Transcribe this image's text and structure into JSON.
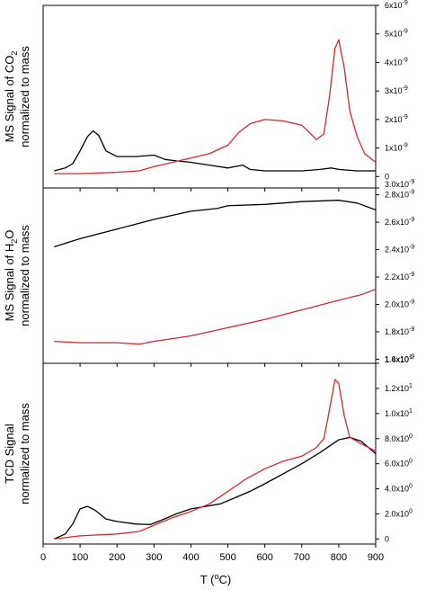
{
  "chart_data": [
    {
      "type": "line",
      "ylabel_line1_prefix": "MS Signal of CO",
      "ylabel_line1_sub": "2",
      "ylabel_line2": "normalized to mass",
      "xlim": [
        0,
        900
      ],
      "ylim": [
        -4e-10,
        6e-09
      ],
      "y_ticks": [
        0,
        1e-09,
        2e-09,
        3e-09,
        4e-09,
        5e-09,
        6e-09
      ],
      "y_tick_labels": [
        "0",
        "1x10-9",
        "2x10-9",
        "3x10-9",
        "4x10-9",
        "5x10-9",
        "6x10-9"
      ],
      "y_axis_side": "right",
      "series": [
        {
          "color": "#000000",
          "points": [
            [
              30,
              2e-10
            ],
            [
              60,
              3e-10
            ],
            [
              80,
              4.5e-10
            ],
            [
              100,
              9e-10
            ],
            [
              120,
              1.4e-09
            ],
            [
              135,
              1.6e-09
            ],
            [
              150,
              1.45e-09
            ],
            [
              170,
              9e-10
            ],
            [
              200,
              7e-10
            ],
            [
              250,
              7e-10
            ],
            [
              300,
              7.5e-10
            ],
            [
              330,
              6e-10
            ],
            [
              360,
              5.5e-10
            ],
            [
              400,
              5e-10
            ],
            [
              450,
              4e-10
            ],
            [
              500,
              3e-10
            ],
            [
              540,
              4e-10
            ],
            [
              560,
              2.5e-10
            ],
            [
              600,
              2e-10
            ],
            [
              650,
              2e-10
            ],
            [
              700,
              2e-10
            ],
            [
              750,
              2.5e-10
            ],
            [
              780,
              3e-10
            ],
            [
              800,
              2.5e-10
            ],
            [
              850,
              2e-10
            ],
            [
              900,
              2e-10
            ]
          ]
        },
        {
          "color": "#d62728",
          "points": [
            [
              30,
              1e-10
            ],
            [
              100,
              1e-10
            ],
            [
              200,
              1.5e-10
            ],
            [
              260,
              2e-10
            ],
            [
              300,
              3.5e-10
            ],
            [
              350,
              5e-10
            ],
            [
              400,
              6.5e-10
            ],
            [
              450,
              8e-10
            ],
            [
              500,
              1.1e-09
            ],
            [
              530,
              1.55e-09
            ],
            [
              560,
              1.85e-09
            ],
            [
              600,
              2e-09
            ],
            [
              650,
              1.95e-09
            ],
            [
              700,
              1.8e-09
            ],
            [
              740,
              1.3e-09
            ],
            [
              760,
              1.5e-09
            ],
            [
              775,
              2.8e-09
            ],
            [
              790,
              4.5e-09
            ],
            [
              800,
              4.8e-09
            ],
            [
              815,
              3.8e-09
            ],
            [
              830,
              2.3e-09
            ],
            [
              850,
              1.4e-09
            ],
            [
              870,
              8e-10
            ],
            [
              900,
              5e-10
            ]
          ]
        }
      ]
    },
    {
      "type": "line",
      "ylabel_line1_prefix": "MS Signal of H",
      "ylabel_line1_sub": "2",
      "ylabel_line1_suffix": "O",
      "ylabel_line2": "normalized to mass",
      "xlim": [
        0,
        900
      ],
      "ylim": [
        1.57e-09,
        2.85e-09
      ],
      "y_ticks": [
        1.6e-09,
        1.8e-09,
        2e-09,
        2.2e-09,
        2.4e-09,
        2.6e-09,
        2.8e-09,
        3e-09
      ],
      "y_tick_labels": [
        "1.6x10-9",
        "1.8x10-9",
        "2.0x10-9",
        "2.2x10-9",
        "2.4x10-9",
        "2.6x10-9",
        "2.8x10-9",
        "3.0x10-9"
      ],
      "y_axis_side": "right",
      "series": [
        {
          "color": "#000000",
          "points": [
            [
              30,
              2.42e-09
            ],
            [
              100,
              2.48e-09
            ],
            [
              200,
              2.55e-09
            ],
            [
              300,
              2.62e-09
            ],
            [
              400,
              2.68e-09
            ],
            [
              470,
              2.7e-09
            ],
            [
              500,
              2.72e-09
            ],
            [
              600,
              2.73e-09
            ],
            [
              700,
              2.75e-09
            ],
            [
              800,
              2.76e-09
            ],
            [
              850,
              2.74e-09
            ],
            [
              900,
              2.69e-09
            ]
          ]
        },
        {
          "color": "#d62728",
          "points": [
            [
              30,
              1.73e-09
            ],
            [
              100,
              1.72e-09
            ],
            [
              200,
              1.72e-09
            ],
            [
              260,
              1.71e-09
            ],
            [
              300,
              1.73e-09
            ],
            [
              400,
              1.77e-09
            ],
            [
              500,
              1.83e-09
            ],
            [
              600,
              1.89e-09
            ],
            [
              700,
              1.96e-09
            ],
            [
              800,
              2.03e-09
            ],
            [
              860,
              2.07e-09
            ],
            [
              900,
              2.11e-09
            ]
          ]
        }
      ]
    },
    {
      "type": "line",
      "ylabel_line1_prefix": "TCD Signal",
      "ylabel_line2": "normalized to mass",
      "xlim": [
        0,
        900
      ],
      "ylim": [
        -0.4,
        14.0
      ],
      "y_ticks": [
        0,
        2,
        4,
        6,
        8,
        10,
        12,
        14
      ],
      "y_tick_labels": [
        "0",
        "2.0x100",
        "4.0x100",
        "6.0x100",
        "8.0x100",
        "1.0x101",
        "1.2x101",
        "1.4x101"
      ],
      "y_axis_side": "right",
      "series": [
        {
          "color": "#000000",
          "points": [
            [
              30,
              0.0
            ],
            [
              60,
              0.4
            ],
            [
              80,
              1.2
            ],
            [
              100,
              2.4
            ],
            [
              120,
              2.6
            ],
            [
              140,
              2.3
            ],
            [
              170,
              1.6
            ],
            [
              200,
              1.4
            ],
            [
              250,
              1.2
            ],
            [
              290,
              1.15
            ],
            [
              320,
              1.5
            ],
            [
              360,
              2.0
            ],
            [
              400,
              2.4
            ],
            [
              440,
              2.6
            ],
            [
              480,
              2.8
            ],
            [
              520,
              3.3
            ],
            [
              560,
              3.8
            ],
            [
              600,
              4.4
            ],
            [
              650,
              5.2
            ],
            [
              700,
              6.0
            ],
            [
              750,
              6.9
            ],
            [
              800,
              7.9
            ],
            [
              830,
              8.1
            ],
            [
              860,
              7.8
            ],
            [
              900,
              6.8
            ]
          ]
        },
        {
          "color": "#d62728",
          "points": [
            [
              30,
              0.0
            ],
            [
              100,
              0.25
            ],
            [
              200,
              0.4
            ],
            [
              260,
              0.6
            ],
            [
              300,
              1.1
            ],
            [
              350,
              1.7
            ],
            [
              400,
              2.2
            ],
            [
              450,
              2.8
            ],
            [
              500,
              3.8
            ],
            [
              550,
              4.8
            ],
            [
              600,
              5.6
            ],
            [
              650,
              6.2
            ],
            [
              700,
              6.6
            ],
            [
              740,
              7.3
            ],
            [
              760,
              8.0
            ],
            [
              775,
              10.3
            ],
            [
              790,
              12.7
            ],
            [
              800,
              12.4
            ],
            [
              815,
              9.8
            ],
            [
              830,
              8.1
            ],
            [
              860,
              7.6
            ],
            [
              900,
              7.0
            ]
          ]
        }
      ]
    }
  ],
  "x_axis": {
    "label_prefix": "T (",
    "label_sup": "o",
    "label_suffix": "C)",
    "ticks": [
      0,
      100,
      200,
      300,
      400,
      500,
      600,
      700,
      800,
      900
    ],
    "tick_labels": [
      "0",
      "100",
      "200",
      "300",
      "400",
      "500",
      "600",
      "700",
      "800",
      "900"
    ]
  }
}
